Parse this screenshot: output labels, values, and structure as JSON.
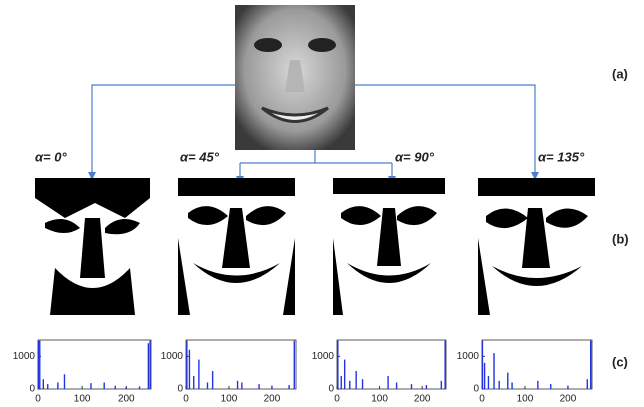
{
  "panel_labels": [
    "(a)",
    "(b)",
    "(c)"
  ],
  "chart_data": [
    {
      "type": "bar",
      "title": "α= 0°",
      "color": "#2233dd",
      "xlim": [
        0,
        256
      ],
      "ylim": [
        0,
        1500
      ],
      "xticks": [
        0,
        100,
        200
      ],
      "yticks": [
        0,
        1000
      ],
      "x": [
        1,
        4,
        12,
        22,
        45,
        60,
        120,
        150,
        175,
        200,
        230,
        250,
        254
      ],
      "values": [
        1480,
        1480,
        300,
        150,
        200,
        450,
        180,
        200,
        100,
        60,
        80,
        1400,
        1480
      ]
    },
    {
      "type": "bar",
      "title": "α= 45°",
      "color": "#2233dd",
      "xlim": [
        0,
        256
      ],
      "ylim": [
        0,
        1500
      ],
      "xticks": [
        0,
        100,
        200
      ],
      "yticks": [
        0,
        1000
      ],
      "x": [
        2,
        8,
        18,
        30,
        50,
        62,
        120,
        130,
        170,
        200,
        240,
        252
      ],
      "values": [
        1480,
        1200,
        400,
        900,
        200,
        550,
        250,
        200,
        150,
        100,
        120,
        1480
      ]
    },
    {
      "type": "bar",
      "title": "α= 90°",
      "color": "#2233dd",
      "xlim": [
        0,
        256
      ],
      "ylim": [
        0,
        1500
      ],
      "xticks": [
        0,
        100,
        200
      ],
      "yticks": [
        0,
        1000
      ],
      "x": [
        2,
        10,
        18,
        30,
        45,
        60,
        120,
        140,
        175,
        210,
        245,
        254
      ],
      "values": [
        1480,
        400,
        900,
        250,
        550,
        300,
        400,
        200,
        150,
        120,
        250,
        1480
      ]
    },
    {
      "type": "bar",
      "title": "α= 135°",
      "color": "#2233dd",
      "xlim": [
        0,
        256
      ],
      "ylim": [
        0,
        1500
      ],
      "xticks": [
        0,
        100,
        200
      ],
      "yticks": [
        0,
        1000
      ],
      "x": [
        1,
        6,
        15,
        28,
        40,
        60,
        70,
        130,
        160,
        200,
        245,
        253
      ],
      "values": [
        1480,
        800,
        400,
        1100,
        250,
        500,
        200,
        250,
        150,
        100,
        300,
        1480
      ]
    }
  ]
}
